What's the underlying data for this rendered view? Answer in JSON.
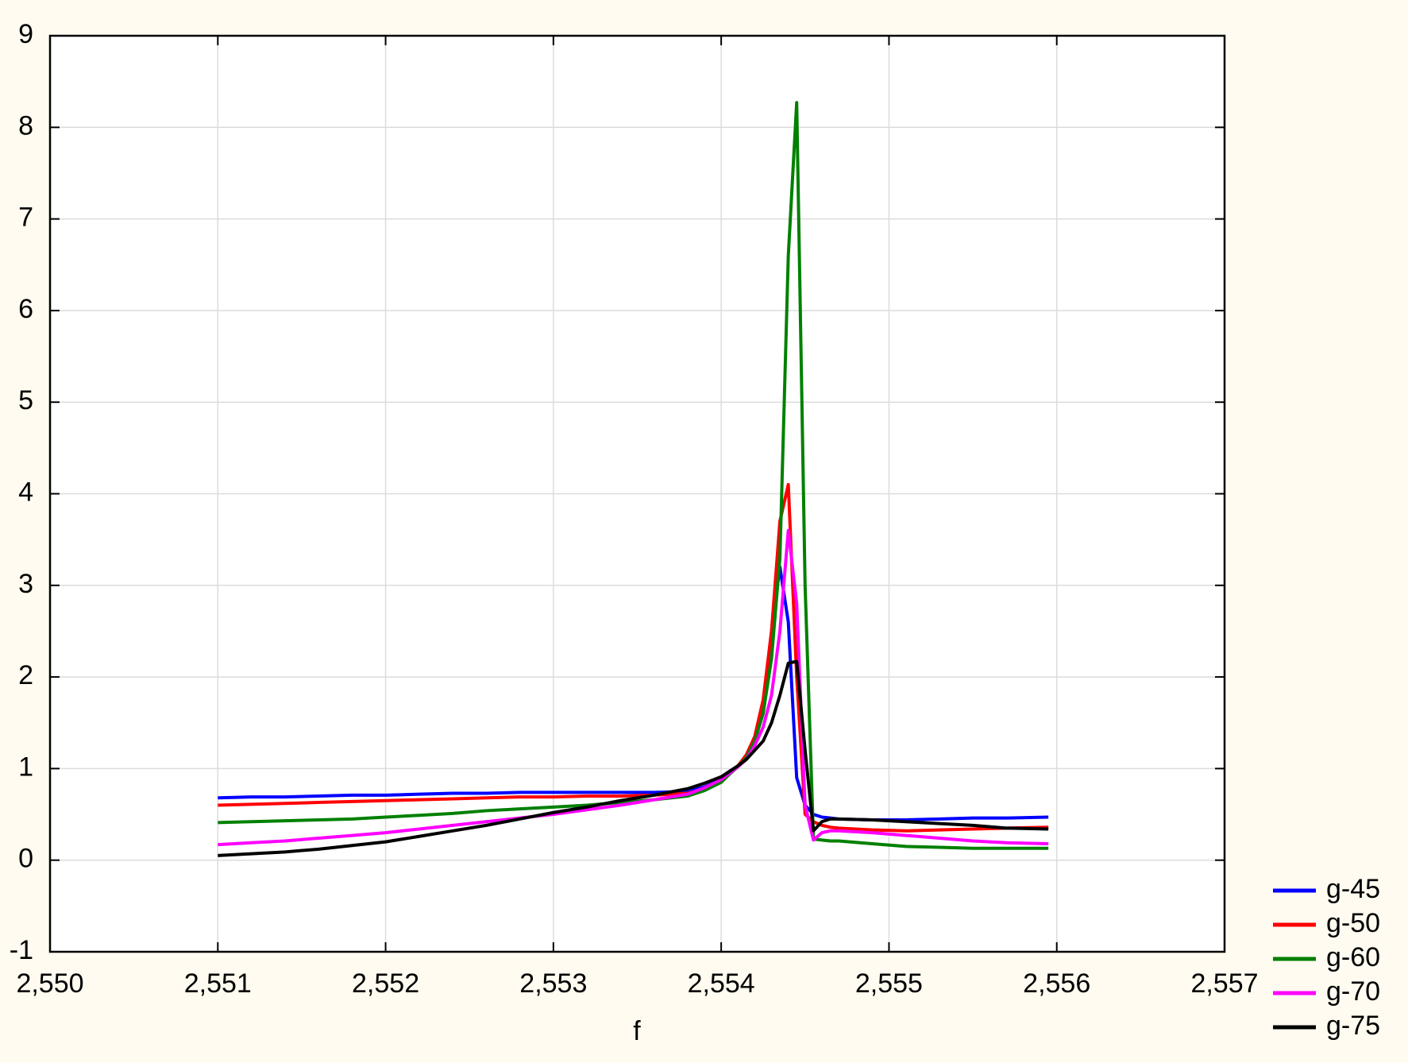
{
  "chart_data": {
    "type": "line",
    "x_label": "f",
    "x": [
      2.551,
      2.5512,
      2.5514,
      2.5516,
      2.5518,
      2.552,
      2.5522,
      2.5524,
      2.5526,
      2.5528,
      2.553,
      2.5532,
      2.5534,
      2.5536,
      2.5538,
      2.5539,
      2.554,
      2.55405,
      2.5541,
      2.55415,
      2.5542,
      2.55425,
      2.5543,
      2.55435,
      2.5544,
      2.55445,
      2.5545,
      2.55455,
      2.5546,
      2.55465,
      2.5547,
      2.5549,
      2.5551,
      2.5553,
      2.5555,
      2.5557,
      2.55595
    ],
    "series": [
      {
        "name": "g-45",
        "color": "#0000ff",
        "values": [
          0.68,
          0.69,
          0.69,
          0.7,
          0.71,
          0.71,
          0.72,
          0.73,
          0.73,
          0.74,
          0.74,
          0.74,
          0.74,
          0.74,
          0.75,
          0.8,
          0.88,
          0.97,
          1.02,
          1.12,
          1.3,
          1.7,
          2.5,
          3.2,
          2.6,
          0.9,
          0.6,
          0.5,
          0.47,
          0.46,
          0.45,
          0.44,
          0.44,
          0.45,
          0.46,
          0.46,
          0.47
        ]
      },
      {
        "name": "g-50",
        "color": "#ff0000",
        "values": [
          0.6,
          0.61,
          0.62,
          0.63,
          0.64,
          0.65,
          0.66,
          0.67,
          0.68,
          0.69,
          0.69,
          0.7,
          0.7,
          0.71,
          0.73,
          0.78,
          0.86,
          0.95,
          1.03,
          1.15,
          1.35,
          1.75,
          2.5,
          3.7,
          4.1,
          2.0,
          0.5,
          0.42,
          0.38,
          0.36,
          0.35,
          0.33,
          0.32,
          0.33,
          0.34,
          0.35,
          0.36
        ]
      },
      {
        "name": "g-60",
        "color": "#008000",
        "values": [
          0.41,
          0.42,
          0.43,
          0.44,
          0.45,
          0.47,
          0.49,
          0.51,
          0.54,
          0.56,
          0.58,
          0.6,
          0.63,
          0.66,
          0.7,
          0.76,
          0.85,
          0.94,
          1.02,
          1.12,
          1.3,
          1.6,
          2.2,
          3.3,
          6.6,
          8.27,
          3.0,
          0.23,
          0.22,
          0.21,
          0.21,
          0.18,
          0.15,
          0.14,
          0.13,
          0.13,
          0.13
        ]
      },
      {
        "name": "g-70",
        "color": "#ff00ff",
        "values": [
          0.17,
          0.19,
          0.21,
          0.24,
          0.27,
          0.3,
          0.34,
          0.38,
          0.42,
          0.46,
          0.5,
          0.55,
          0.6,
          0.66,
          0.72,
          0.79,
          0.88,
          0.95,
          1.02,
          1.1,
          1.25,
          1.45,
          1.8,
          2.5,
          3.6,
          2.8,
          0.6,
          0.22,
          0.3,
          0.32,
          0.32,
          0.3,
          0.27,
          0.24,
          0.21,
          0.19,
          0.18
        ]
      },
      {
        "name": "g-75",
        "color": "#000000",
        "values": [
          0.05,
          0.07,
          0.09,
          0.12,
          0.16,
          0.2,
          0.26,
          0.32,
          0.38,
          0.45,
          0.52,
          0.58,
          0.65,
          0.71,
          0.78,
          0.84,
          0.91,
          0.97,
          1.03,
          1.1,
          1.2,
          1.3,
          1.5,
          1.8,
          2.15,
          2.17,
          1.2,
          0.32,
          0.42,
          0.45,
          0.45,
          0.44,
          0.42,
          0.4,
          0.38,
          0.35,
          0.34
        ]
      }
    ],
    "xlim": [
      2.55,
      2.557
    ],
    "xticks": [
      {
        "value": 2.55,
        "label": "2,550"
      },
      {
        "value": 2.551,
        "label": "2,551"
      },
      {
        "value": 2.552,
        "label": "2,552"
      },
      {
        "value": 2.553,
        "label": "2,553"
      },
      {
        "value": 2.554,
        "label": "2,554"
      },
      {
        "value": 2.555,
        "label": "2,555"
      },
      {
        "value": 2.556,
        "label": "2,556"
      },
      {
        "value": 2.557,
        "label": "2,557"
      }
    ],
    "ylim": [
      -1,
      9
    ],
    "yticks": [
      -1,
      0,
      1,
      2,
      3,
      4,
      5,
      6,
      7,
      8,
      9
    ],
    "grid": true,
    "legend": "bottom-right"
  }
}
